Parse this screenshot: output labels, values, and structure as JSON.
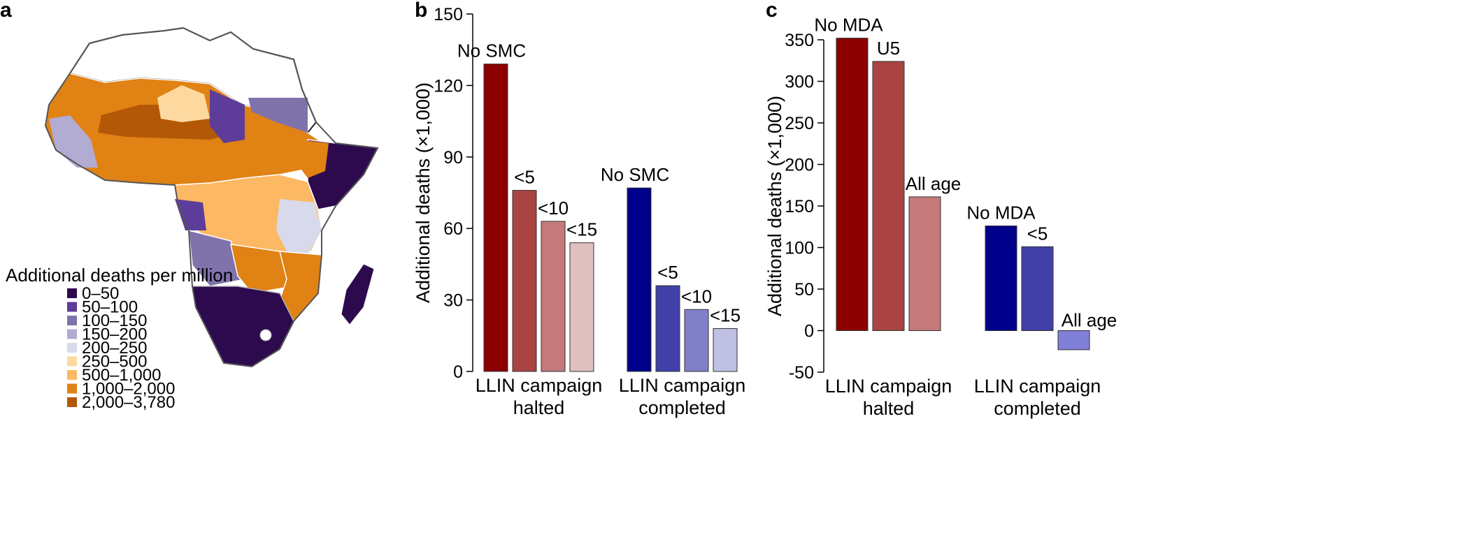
{
  "colors": {
    "legend": [
      "#2d0a4e",
      "#5e3c99",
      "#8073ac",
      "#b2abd2",
      "#d8daeb",
      "#fdd9a0",
      "#fdb863",
      "#e08214",
      "#b35806"
    ],
    "halted": [
      "#8b0000",
      "#a94442",
      "#c47a7a",
      "#e0c0c0"
    ],
    "completed": [
      "#00008b",
      "#4040a8",
      "#8080c8",
      "#c0c0e4"
    ],
    "mda_halted": [
      "#8b0000",
      "#a94442",
      "#c47a7a"
    ],
    "mda_completed": [
      "#00008b",
      "#4040a8",
      "#8080d8"
    ]
  },
  "panel_a": {
    "letter": "a",
    "legend_title": "Additional deaths per million",
    "legend_items": [
      "0–50",
      "50–100",
      "100–150",
      "150–200",
      "200–250",
      "250–500",
      "500–1,000",
      "1,000–2,000",
      "2,000–3,780"
    ]
  },
  "chart_data": [
    {
      "type": "bar",
      "panel": "b",
      "ylabel": "Additional deaths (×1,000)",
      "ylim": [
        0,
        150
      ],
      "yticks": [
        0,
        30,
        60,
        90,
        120,
        150
      ],
      "groups": [
        {
          "name": "LLIN campaign halted",
          "name_lines": [
            "LLIN campaign",
            "halted"
          ],
          "bars": [
            {
              "label": "No SMC",
              "value": 129
            },
            {
              "label": "<5",
              "value": 76
            },
            {
              "label": "<10",
              "value": 63
            },
            {
              "label": "<15",
              "value": 54
            }
          ]
        },
        {
          "name": "LLIN campaign completed",
          "name_lines": [
            "LLIN campaign",
            "completed"
          ],
          "bars": [
            {
              "label": "No SMC",
              "value": 77
            },
            {
              "label": "<5",
              "value": 36
            },
            {
              "label": "<10",
              "value": 26
            },
            {
              "label": "<15",
              "value": 18
            }
          ]
        }
      ]
    },
    {
      "type": "bar",
      "panel": "c",
      "ylabel": "Additional deaths (×1,000)",
      "ylim": [
        -50,
        350
      ],
      "yticks": [
        -50,
        0,
        50,
        100,
        150,
        200,
        250,
        300,
        350
      ],
      "groups": [
        {
          "name": "LLIN campaign halted",
          "name_lines": [
            "LLIN campaign",
            "halted"
          ],
          "bars": [
            {
              "label": "No MDA",
              "value": 352
            },
            {
              "label": "U5",
              "value": 324
            },
            {
              "label": "All age",
              "value": 161
            }
          ]
        },
        {
          "name": "LLIN campaign completed",
          "name_lines": [
            "LLIN campaign",
            "completed"
          ],
          "bars": [
            {
              "label": "No MDA",
              "value": 126
            },
            {
              "label": "<5",
              "value": 101
            },
            {
              "label": "All age",
              "value": -23
            }
          ]
        }
      ]
    }
  ]
}
